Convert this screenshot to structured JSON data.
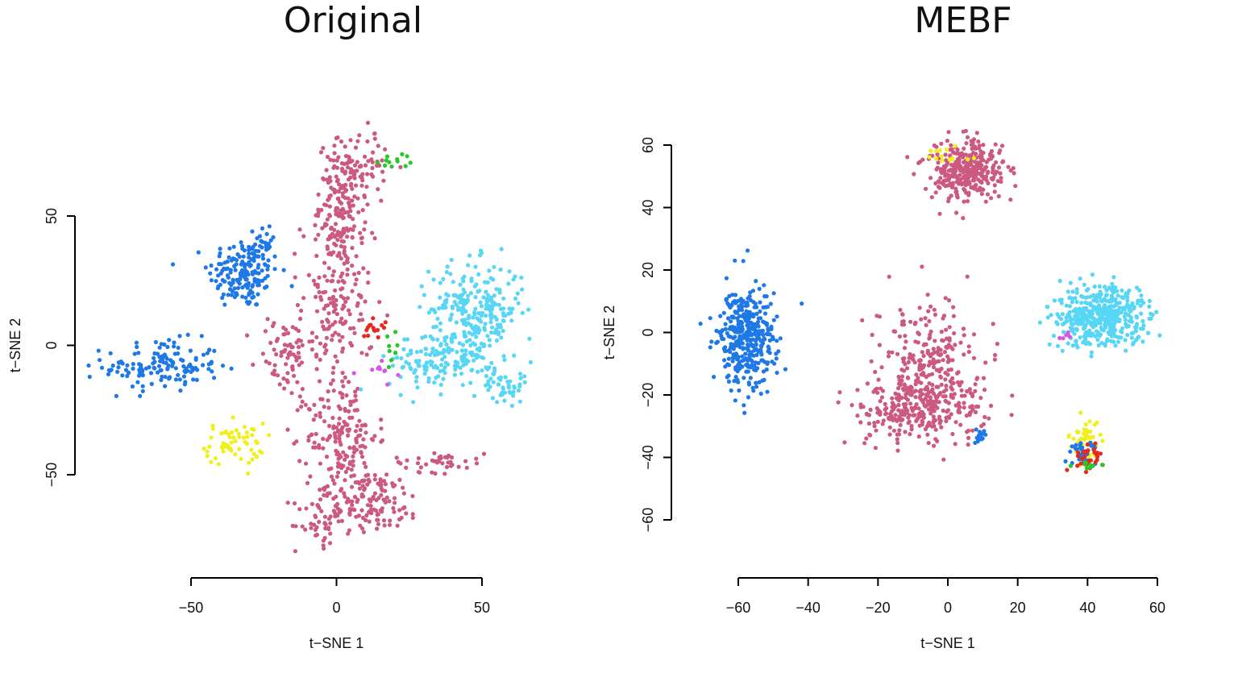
{
  "chart_data": [
    {
      "type": "scatter",
      "title": "Original",
      "xlabel": "t−SNE 1",
      "ylabel": "t−SNE 2",
      "xlim": [
        -50,
        50
      ],
      "ylim": [
        -50,
        50
      ],
      "x_ticks": [
        "−50",
        "0",
        "50"
      ],
      "y_ticks": [
        "−50",
        "0",
        "50"
      ],
      "grid": false,
      "legend": "none",
      "clusters": [
        {
          "color": "#1e78e6",
          "cx": -32,
          "cy": 28,
          "sx": 6,
          "sy": 7,
          "n": 170
        },
        {
          "color": "#1e78e6",
          "cx": -24,
          "cy": 40,
          "sx": 2,
          "sy": 4,
          "n": 20
        },
        {
          "color": "#1e78e6",
          "cx": -60,
          "cy": -8,
          "sx": 10,
          "sy": 5,
          "n": 140
        },
        {
          "color": "#f0f01e",
          "cx": -35,
          "cy": -38,
          "sx": 5,
          "sy": 4,
          "n": 60
        },
        {
          "color": "#cc5980",
          "cx": 2,
          "cy": 55,
          "sx": 4,
          "sy": 12,
          "n": 170
        },
        {
          "color": "#cc5980",
          "cx": 10,
          "cy": 70,
          "sx": 4,
          "sy": 8,
          "n": 45
        },
        {
          "color": "#cc5980",
          "cx": 0,
          "cy": 15,
          "sx": 6,
          "sy": 18,
          "n": 180
        },
        {
          "color": "#cc5980",
          "cx": -18,
          "cy": -4,
          "sx": 5,
          "sy": 8,
          "n": 70
        },
        {
          "color": "#cc5980",
          "cx": 2,
          "cy": -35,
          "sx": 6,
          "sy": 10,
          "n": 150
        },
        {
          "color": "#cc5980",
          "cx": 10,
          "cy": -60,
          "sx": 10,
          "sy": 6,
          "n": 160
        },
        {
          "color": "#cc5980",
          "cx": -6,
          "cy": -70,
          "sx": 4,
          "sy": 4,
          "n": 30
        },
        {
          "color": "#cc5980",
          "cx": 35,
          "cy": -45,
          "sx": 8,
          "sy": 2,
          "n": 40
        },
        {
          "color": "#58d6f5",
          "cx": 48,
          "cy": 14,
          "sx": 8,
          "sy": 9,
          "n": 240
        },
        {
          "color": "#58d6f5",
          "cx": 38,
          "cy": -6,
          "sx": 10,
          "sy": 6,
          "n": 160
        },
        {
          "color": "#58d6f5",
          "cx": 58,
          "cy": -16,
          "sx": 4,
          "sy": 3,
          "n": 40
        },
        {
          "color": "#e6281e",
          "cx": 13,
          "cy": 7,
          "sx": 2,
          "sy": 2,
          "n": 14
        },
        {
          "color": "#28c828",
          "cx": 19,
          "cy": 72,
          "sx": 3,
          "sy": 2,
          "n": 12
        },
        {
          "color": "#28c828",
          "cx": 19,
          "cy": -2,
          "sx": 2,
          "sy": 3,
          "n": 8
        },
        {
          "color": "#d25ae6",
          "cx": 15,
          "cy": -10,
          "sx": 3,
          "sy": 3,
          "n": 10
        }
      ]
    },
    {
      "type": "scatter",
      "title": "MEBF",
      "xlabel": "t−SNE 1",
      "ylabel": "t−SNE 2",
      "xlim": [
        -60,
        60
      ],
      "ylim": [
        -60,
        60
      ],
      "x_ticks": [
        "−60",
        "−40",
        "−20",
        "0",
        "20",
        "40",
        "60"
      ],
      "y_ticks": [
        "−60",
        "−40",
        "−20",
        "0",
        "20",
        "40",
        "60"
      ],
      "grid": false,
      "legend": "none",
      "clusters": [
        {
          "color": "#1e78e6",
          "cx": -58,
          "cy": -2,
          "sx": 4,
          "sy": 8,
          "n": 380
        },
        {
          "color": "#1e78e6",
          "cx": 9,
          "cy": -33,
          "sx": 1,
          "sy": 1,
          "n": 20
        },
        {
          "color": "#cc5980",
          "cx": 5,
          "cy": 52,
          "sx": 6,
          "sy": 5,
          "n": 330
        },
        {
          "color": "#cc5980",
          "cx": -5,
          "cy": -10,
          "sx": 7,
          "sy": 10,
          "n": 250
        },
        {
          "color": "#cc5980",
          "cx": -8,
          "cy": -25,
          "sx": 9,
          "sy": 5,
          "n": 260
        },
        {
          "color": "#58d6f5",
          "cx": 44,
          "cy": 5,
          "sx": 7,
          "sy": 5,
          "n": 420
        },
        {
          "color": "#f0f01e",
          "cx": 0,
          "cy": 57,
          "sx": 3,
          "sy": 2,
          "n": 14
        },
        {
          "color": "#f0f01e",
          "cx": 40,
          "cy": -35,
          "sx": 2,
          "sy": 3,
          "n": 60
        },
        {
          "color": "#1e78e6",
          "cx": 39,
          "cy": -39,
          "sx": 2,
          "sy": 2,
          "n": 40
        },
        {
          "color": "#e6281e",
          "cx": 40,
          "cy": -40,
          "sx": 2,
          "sy": 2,
          "n": 30
        },
        {
          "color": "#28c828",
          "cx": 40,
          "cy": -43,
          "sx": 2,
          "sy": 1,
          "n": 10
        },
        {
          "color": "#d25ae6",
          "cx": 34,
          "cy": -1,
          "sx": 1,
          "sy": 1,
          "n": 6
        }
      ]
    }
  ]
}
